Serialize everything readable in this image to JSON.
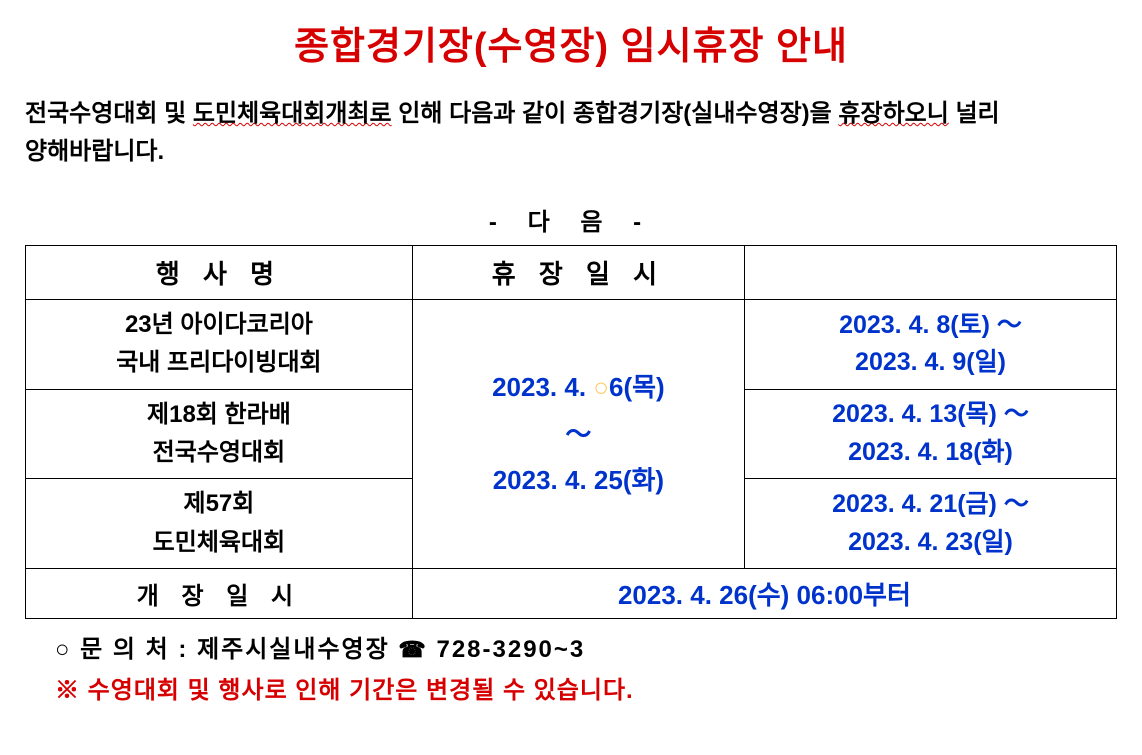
{
  "title": "종합경기장(수영장) 임시휴장 안내",
  "description": {
    "prefix": "전국수영대회 및 ",
    "wavy1": "도민체육대회개최로",
    "middle": " 인해 다음과 같이 종합경기장(실내수영장)을 ",
    "wavy2": "휴장하오니",
    "suffix": " 널리 양해바랍니다."
  },
  "separator": "- 다    음 -",
  "table": {
    "headers": {
      "col1": "행 사 명",
      "col2": "휴 장 일 시",
      "col3": ""
    },
    "closure_period_1": "2023. 4. ",
    "closure_period_circle": "○",
    "closure_period_2": "6(목)",
    "closure_period_tilde": "～",
    "closure_period_3": "2023. 4. 25(화)",
    "rows": [
      {
        "event_line1": "23년 아이다코리아",
        "event_line2": "국내 프리다이빙대회",
        "dates_line1": "2023. 4. 8(토) ～",
        "dates_line2": "2023. 4. 9(일)"
      },
      {
        "event_line1": "제18회 한라배",
        "event_line2": "전국수영대회",
        "dates_line1": "2023. 4. 13(목) ～",
        "dates_line2": "2023. 4. 18(화)"
      },
      {
        "event_line1": "제57회",
        "event_line2": "도민체육대회",
        "dates_line1": "2023. 4. 21(금) ～",
        "dates_line2": "2023. 4. 23(일)"
      }
    ],
    "reopen": {
      "label": "개 장 일 시",
      "date": "2023. 4. 26(수) 06:00부터"
    }
  },
  "contact": {
    "prefix": "○ 문 의 처 :   제주시실내수영장    ",
    "phone_icon": "☎",
    "phone": " 728-3290~3"
  },
  "notice": "※ 수영대회 및 행사로 인해 기간은 변경될 수 있습니다.",
  "colors": {
    "title_red": "#d60000",
    "date_blue": "#0033cc",
    "notice_red": "#d60000",
    "circle_orange": "#ffcc66",
    "background": "#ffffff",
    "text_black": "#000000",
    "border": "#000000"
  }
}
